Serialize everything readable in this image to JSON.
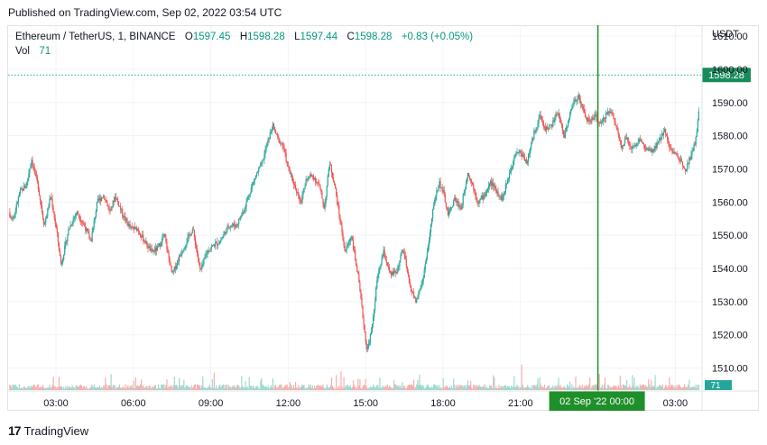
{
  "header": {
    "published": "Published on TradingView.com, Sep 02, 2022 03:54 UTC"
  },
  "legend": {
    "symbol": "Ethereum / TetherUS, 1, BINANCE",
    "open_label": "O",
    "open": "1597.45",
    "high_label": "H",
    "high": "1598.28",
    "low_label": "L",
    "low": "1597.44",
    "close_label": "C",
    "close": "1598.28",
    "change": "+0.83 (+0.05%)",
    "vol_label": "Vol",
    "vol": "71"
  },
  "footer": {
    "logo": "17",
    "brand": "TradingView"
  },
  "chart_data": {
    "type": "candlestick",
    "price_axis_unit": "USDT",
    "y_ticks": [
      1510,
      1520,
      1530,
      1540,
      1550,
      1560,
      1570,
      1580,
      1590,
      1600,
      1610
    ],
    "y_tick_labels": [
      "1510.00",
      "1520.00",
      "1530.00",
      "1540.00",
      "1550.00",
      "1560.00",
      "1570.00",
      "1580.00",
      "1590.00",
      "1600.00",
      "1610.00"
    ],
    "ylim": [
      1505,
      1613
    ],
    "x_ticks": [
      "03:00",
      "06:00",
      "09:00",
      "12:00",
      "15:00",
      "18:00",
      "21:00",
      "02 Sep '22  00:00",
      "03:00"
    ],
    "x_range_hours": [
      0,
      28.9
    ],
    "last_price": 1598.28,
    "last_price_label": "1598.28",
    "last_volume_label": "71",
    "crosshair_label": "02 Sep '22   00:00",
    "colors": {
      "up": "#26a69a",
      "down": "#ef5350",
      "crosshair": "#1f8f2a",
      "price_tag": "#1a8c5c"
    },
    "price_path": [
      [
        1.0,
        1558
      ],
      [
        1.35,
        1555
      ],
      [
        1.6,
        1563
      ],
      [
        1.85,
        1565
      ],
      [
        2.05,
        1573
      ],
      [
        2.3,
        1565
      ],
      [
        2.55,
        1553
      ],
      [
        2.8,
        1562
      ],
      [
        3.05,
        1550
      ],
      [
        3.2,
        1541
      ],
      [
        3.5,
        1552
      ],
      [
        3.8,
        1557
      ],
      [
        4.1,
        1553
      ],
      [
        4.35,
        1548
      ],
      [
        4.6,
        1560
      ],
      [
        4.85,
        1562
      ],
      [
        5.1,
        1557
      ],
      [
        5.3,
        1562
      ],
      [
        5.6,
        1556
      ],
      [
        5.9,
        1552
      ],
      [
        6.15,
        1552
      ],
      [
        6.45,
        1548
      ],
      [
        6.7,
        1545
      ],
      [
        6.95,
        1546
      ],
      [
        7.2,
        1550
      ],
      [
        7.5,
        1538
      ],
      [
        7.75,
        1543
      ],
      [
        8.05,
        1548
      ],
      [
        8.3,
        1552
      ],
      [
        8.6,
        1539
      ],
      [
        8.85,
        1545
      ],
      [
        9.1,
        1547
      ],
      [
        9.35,
        1548
      ],
      [
        9.7,
        1553
      ],
      [
        10.0,
        1553
      ],
      [
        10.3,
        1558
      ],
      [
        10.55,
        1564
      ],
      [
        10.75,
        1568
      ],
      [
        11.0,
        1572
      ],
      [
        11.2,
        1578
      ],
      [
        11.4,
        1583
      ],
      [
        11.6,
        1579
      ],
      [
        11.8,
        1577
      ],
      [
        12.0,
        1570
      ],
      [
        12.2,
        1566
      ],
      [
        12.5,
        1560
      ],
      [
        12.7,
        1567
      ],
      [
        12.95,
        1568
      ],
      [
        13.2,
        1565
      ],
      [
        13.4,
        1558
      ],
      [
        13.6,
        1572
      ],
      [
        13.8,
        1565
      ],
      [
        14.0,
        1555
      ],
      [
        14.2,
        1545
      ],
      [
        14.45,
        1550
      ],
      [
        14.7,
        1538
      ],
      [
        14.9,
        1525
      ],
      [
        15.05,
        1515
      ],
      [
        15.25,
        1522
      ],
      [
        15.45,
        1537
      ],
      [
        15.7,
        1545
      ],
      [
        15.95,
        1538
      ],
      [
        16.2,
        1539
      ],
      [
        16.45,
        1546
      ],
      [
        16.7,
        1535
      ],
      [
        16.95,
        1530
      ],
      [
        17.2,
        1536
      ],
      [
        17.45,
        1548
      ],
      [
        17.65,
        1560
      ],
      [
        17.85,
        1566
      ],
      [
        18.0,
        1563
      ],
      [
        18.2,
        1556
      ],
      [
        18.45,
        1561
      ],
      [
        18.7,
        1558
      ],
      [
        18.95,
        1569
      ],
      [
        19.15,
        1565
      ],
      [
        19.35,
        1560
      ],
      [
        19.6,
        1562
      ],
      [
        19.85,
        1566
      ],
      [
        20.1,
        1563
      ],
      [
        20.3,
        1561
      ],
      [
        20.55,
        1568
      ],
      [
        20.8,
        1575
      ],
      [
        21.0,
        1575
      ],
      [
        21.25,
        1572
      ],
      [
        21.5,
        1580
      ],
      [
        21.75,
        1586
      ],
      [
        21.95,
        1582
      ],
      [
        22.2,
        1583
      ],
      [
        22.45,
        1587
      ],
      [
        22.7,
        1580
      ],
      [
        22.9,
        1586
      ],
      [
        23.05,
        1590
      ],
      [
        23.25,
        1592
      ],
      [
        23.45,
        1587
      ],
      [
        23.65,
        1584
      ],
      [
        23.9,
        1586
      ],
      [
        24.1,
        1583
      ],
      [
        24.35,
        1587
      ],
      [
        24.55,
        1587
      ],
      [
        24.7,
        1583
      ],
      [
        24.9,
        1577
      ],
      [
        25.1,
        1579
      ],
      [
        25.35,
        1576
      ],
      [
        25.6,
        1579
      ],
      [
        25.85,
        1576
      ],
      [
        26.1,
        1575
      ],
      [
        26.35,
        1578
      ],
      [
        26.6,
        1582
      ],
      [
        26.8,
        1576
      ],
      [
        27.05,
        1574
      ],
      [
        27.25,
        1572
      ],
      [
        27.4,
        1570
      ],
      [
        27.6,
        1574
      ],
      [
        27.8,
        1579
      ],
      [
        27.95,
        1590
      ],
      [
        28.05,
        1601
      ],
      [
        28.15,
        1597
      ],
      [
        28.3,
        1604
      ],
      [
        28.45,
        1592
      ],
      [
        28.6,
        1597
      ],
      [
        28.75,
        1603
      ],
      [
        28.9,
        1598.28
      ]
    ],
    "volume_spikes": [
      [
        13.85,
        0.28
      ],
      [
        14.05,
        0.35
      ],
      [
        21.05,
        0.31
      ],
      [
        24.05,
        0.3
      ],
      [
        27.95,
        0.74
      ],
      [
        28.1,
        0.42
      ],
      [
        28.3,
        0.18
      ]
    ]
  }
}
